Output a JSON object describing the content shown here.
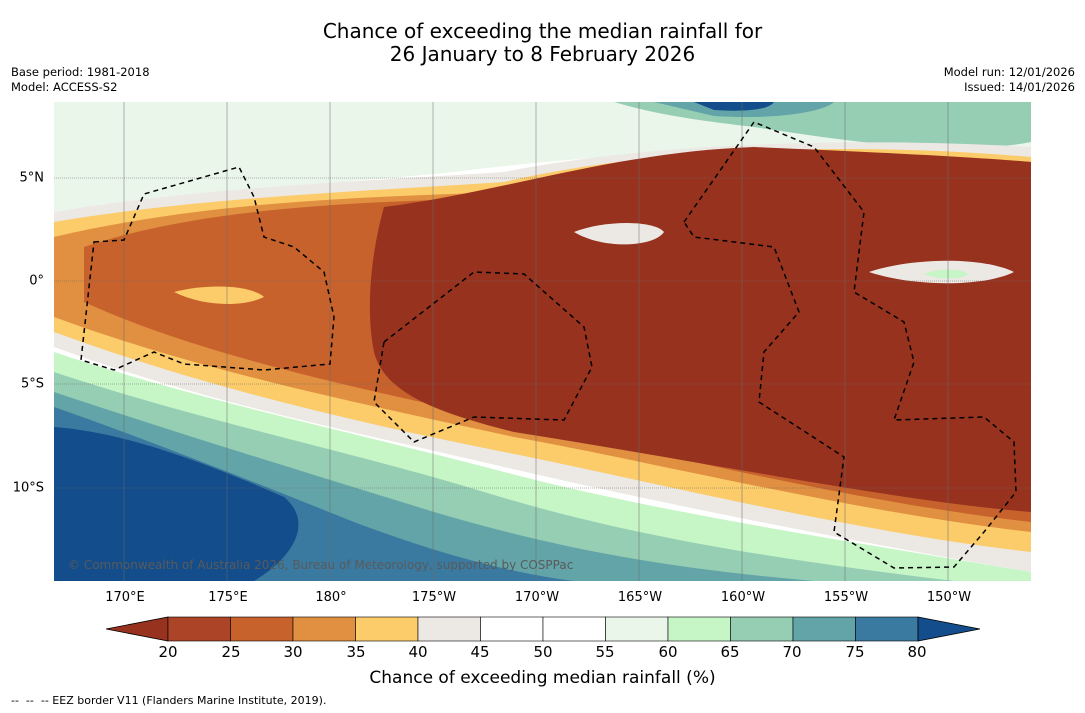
{
  "title": {
    "line1": "Chance of exceeding the median rainfall for",
    "line2": "26 January to 8 February 2026"
  },
  "meta": {
    "base_period": "Base period: 1981-2018",
    "model": "Model: ACCESS-S2",
    "model_run": "Model run: 12/01/2026",
    "issued": "Issued: 14/01/2026"
  },
  "map": {
    "lon_labels": [
      "170°E",
      "175°E",
      "180°",
      "175°W",
      "170°W",
      "165°W",
      "160°W",
      "155°W",
      "150°W"
    ],
    "lat_labels": [
      "5°N",
      "0°",
      "5°S",
      "10°S"
    ],
    "copyright": "© Commonwealth of Australia 2026, Bureau of Meteorology, supported by COSPPac",
    "background_colors": {
      "dry_core": "#97321f",
      "dry_mid": "#c8622c",
      "dry_light": "#e09040",
      "moderate": "#fccb6a",
      "neutral": "#ece8e4",
      "wet_light": "#c6f5c6",
      "wet_mid": "#96ceb4",
      "wet_high": "#62a4a7",
      "wet_very_high": "#3b7aa0",
      "wet_extreme": "#134d8b"
    }
  },
  "colorbar": {
    "title": "Chance of exceeding median rainfall (%)",
    "ticks": [
      "20",
      "25",
      "30",
      "35",
      "40",
      "45",
      "50",
      "55",
      "60",
      "65",
      "70",
      "75",
      "80"
    ],
    "colors": [
      "#97321f",
      "#ac4528",
      "#c8622c",
      "#e09040",
      "#fccb6a",
      "#ece8e4",
      "#ffffff",
      "#ffffff",
      "#ebf6ea",
      "#c6f5c6",
      "#96ceb4",
      "#62a4a7",
      "#3b7aa0",
      "#134d8b"
    ]
  },
  "footnote": "--  --  -- EEZ border V11 (Flanders Marine Institute, 2019)."
}
